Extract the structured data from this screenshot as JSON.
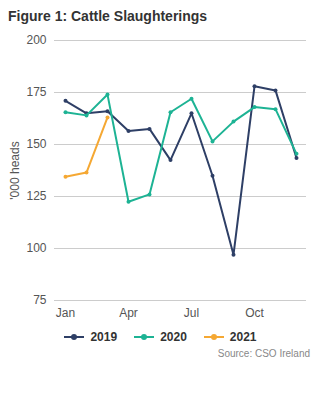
{
  "chart_data": {
    "type": "line",
    "title": "Figure 1: Cattle Slaughterings",
    "y_label": "'000 heads",
    "source": "Source: CSO Ireland",
    "categories": [
      "Jan",
      null,
      null,
      "Apr",
      null,
      null,
      "Jul",
      null,
      null,
      "Oct",
      null,
      null
    ],
    "series": [
      {
        "name": "2019",
        "color": "#2e3f66",
        "values": [
          171,
          165,
          166,
          156.5,
          157.5,
          142.5,
          165,
          135,
          97,
          178,
          176,
          143.5
        ]
      },
      {
        "name": "2020",
        "color": "#1db394",
        "values": [
          165.5,
          164,
          174,
          122.5,
          126,
          165.5,
          172,
          151.5,
          161,
          168,
          167,
          145.5
        ]
      },
      {
        "name": "2021",
        "color": "#f5a833",
        "values": [
          134.5,
          136.5,
          163,
          null,
          null,
          null,
          null,
          null,
          null,
          null,
          null,
          null
        ]
      }
    ],
    "ylim": [
      75,
      200
    ],
    "yticks": [
      75,
      100,
      125,
      150,
      175,
      200
    ],
    "grid": true,
    "legend": "bottom",
    "marker": "circle"
  }
}
